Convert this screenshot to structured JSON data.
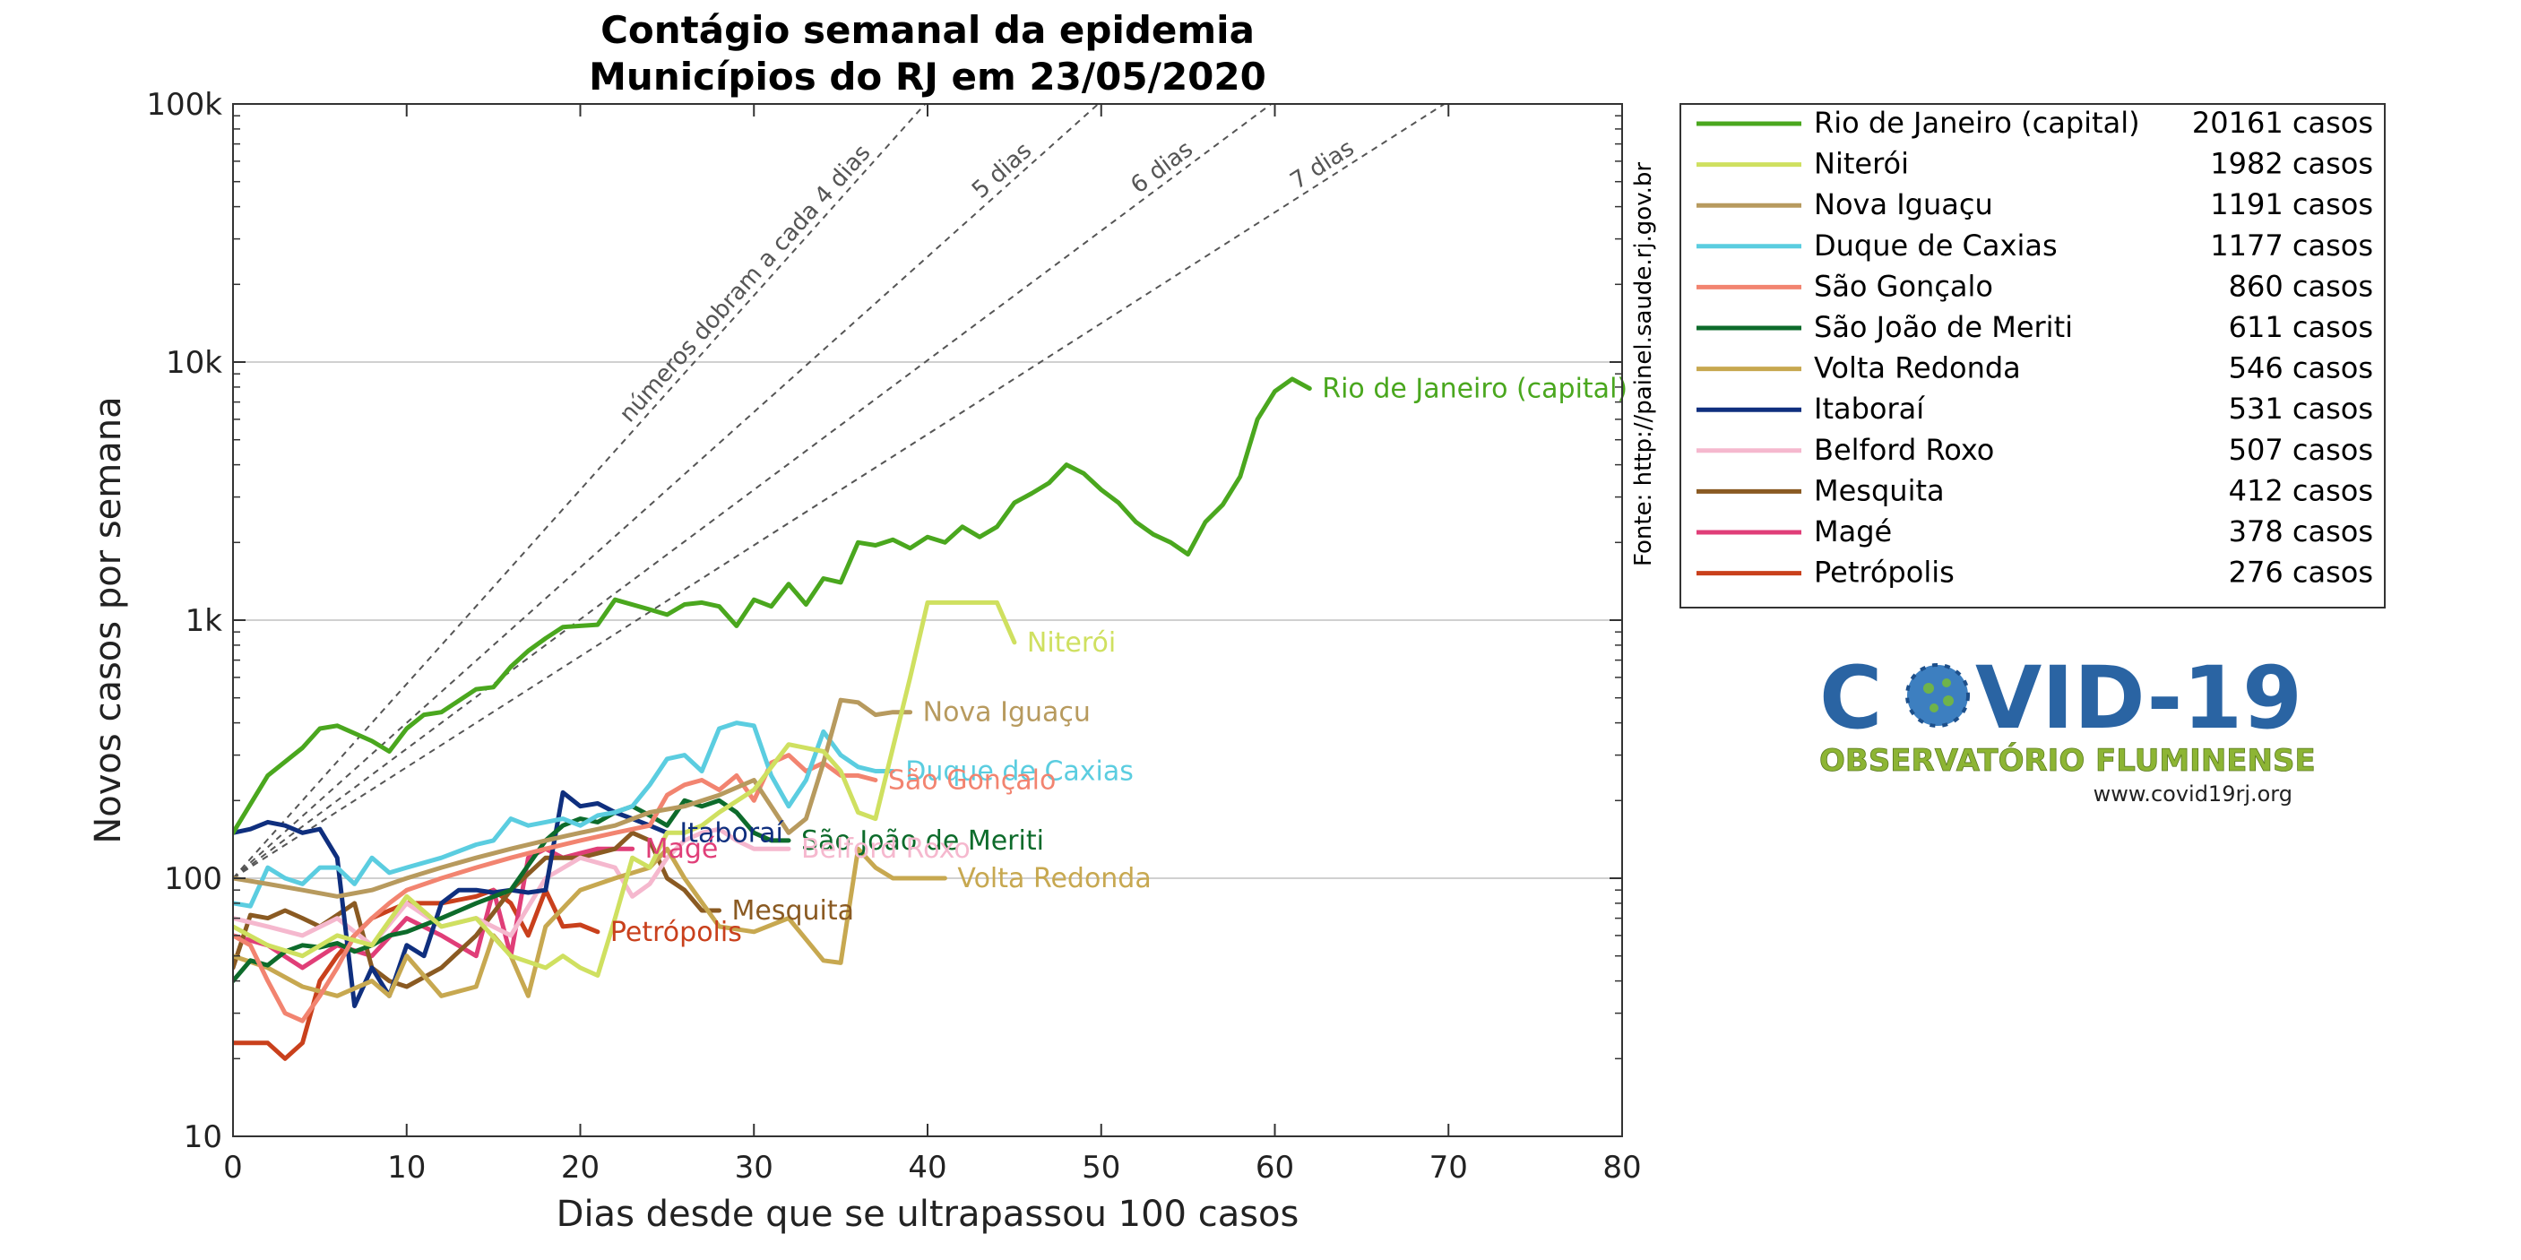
{
  "chart_data": {
    "type": "line",
    "title": "Contágio semanal da epidemia",
    "subtitle": "Municípios do RJ em 23/05/2020",
    "xlabel": "Dias desde que se ultrapassou 100 casos",
    "ylabel": "Novos casos por semana",
    "xlim": [
      0,
      80
    ],
    "ylim": [
      10,
      100000
    ],
    "yscale": "log",
    "grid": "horizontal",
    "x_ticks": [
      0,
      10,
      20,
      30,
      40,
      50,
      60,
      70,
      80
    ],
    "y_ticks": [
      10,
      100,
      1000,
      10000,
      100000
    ],
    "y_tick_labels": [
      "10",
      "100",
      "1k",
      "10k",
      "100k"
    ],
    "legend_position": "outside-right-top",
    "doubling_reference_lines": [
      {
        "days": 4,
        "label": "números dobram a cada 4 dias"
      },
      {
        "days": 5,
        "label": "5 dias"
      },
      {
        "days": 6,
        "label": "6 dias"
      },
      {
        "days": 7,
        "label": "7 dias"
      }
    ],
    "doubling_origin_value": 100,
    "source_note": "Fonte: http://painel.saude.rj.gov.br",
    "series": [
      {
        "name": "Rio de Janeiro (capital)",
        "total": "20161 casos",
        "color": "#4aa71e",
        "end_label": "Rio de Janeiro (capital)",
        "x": [
          0,
          2,
          4,
          5,
          6,
          8,
          9,
          10,
          11,
          12,
          14,
          15,
          16,
          17,
          18,
          19,
          20,
          21,
          22,
          24,
          25,
          26,
          27,
          28,
          29,
          30,
          31,
          32,
          33,
          34,
          35,
          36,
          37,
          38,
          39,
          40,
          41,
          42,
          43,
          44,
          45,
          46,
          47,
          48,
          49,
          50,
          51,
          52,
          53,
          54,
          55,
          56,
          57,
          58,
          59,
          60,
          61,
          62
        ],
        "y": [
          150,
          250,
          320,
          380,
          390,
          340,
          310,
          380,
          430,
          440,
          540,
          550,
          660,
          760,
          850,
          940,
          950,
          960,
          1200,
          1100,
          1050,
          1150,
          1170,
          1130,
          950,
          1200,
          1130,
          1380,
          1150,
          1450,
          1400,
          2000,
          1950,
          2050,
          1900,
          2100,
          2000,
          2300,
          2100,
          2300,
          2850,
          3100,
          3400,
          4000,
          3700,
          3200,
          2850,
          2400,
          2150,
          2000,
          1800,
          2400,
          2800,
          3600,
          6000,
          7700,
          8600,
          7900
        ]
      },
      {
        "name": "Niterói",
        "total": "1982 casos",
        "color": "#cfe060",
        "end_label": "Niterói",
        "x": [
          0,
          2,
          4,
          6,
          8,
          10,
          12,
          14,
          16,
          18,
          19,
          20,
          21,
          22,
          23,
          24,
          25,
          26,
          27,
          28,
          30,
          32,
          34,
          35,
          36,
          37,
          38,
          39,
          40,
          42,
          43,
          44,
          45
        ],
        "y": [
          65,
          55,
          50,
          60,
          55,
          85,
          65,
          70,
          50,
          45,
          50,
          45,
          42,
          70,
          120,
          110,
          150,
          150,
          160,
          180,
          220,
          330,
          310,
          260,
          180,
          170,
          320,
          600,
          1170,
          1170,
          1170,
          1170,
          820
        ]
      },
      {
        "name": "Nova Iguaçu",
        "total": "1191 casos",
        "color": "#b79a5e",
        "end_label": "Nova Iguaçu",
        "x": [
          0,
          2,
          4,
          6,
          8,
          10,
          12,
          14,
          16,
          18,
          20,
          22,
          24,
          26,
          28,
          30,
          32,
          33,
          34,
          35,
          36,
          37,
          38,
          39
        ],
        "y": [
          100,
          95,
          90,
          85,
          90,
          100,
          110,
          120,
          130,
          140,
          150,
          160,
          180,
          190,
          210,
          240,
          150,
          170,
          280,
          490,
          480,
          430,
          440,
          440
        ]
      },
      {
        "name": "Duque de Caxias",
        "total": "1177 casos",
        "color": "#5bcde0",
        "end_label": "Duque de Caxias",
        "x": [
          0,
          1,
          2,
          3,
          4,
          5,
          6,
          7,
          8,
          9,
          10,
          12,
          14,
          15,
          16,
          17,
          18,
          19,
          20,
          21,
          22,
          23,
          24,
          25,
          26,
          27,
          28,
          29,
          30,
          31,
          32,
          33,
          34,
          35,
          36,
          37,
          38
        ],
        "y": [
          80,
          78,
          110,
          100,
          95,
          110,
          110,
          95,
          120,
          105,
          110,
          120,
          135,
          140,
          170,
          160,
          165,
          170,
          160,
          175,
          180,
          190,
          230,
          290,
          300,
          260,
          380,
          400,
          390,
          250,
          190,
          240,
          370,
          300,
          270,
          260,
          260
        ]
      },
      {
        "name": "São Gonçalo",
        "total": "860 casos",
        "color": "#f28470",
        "end_label": "São Gonçalo",
        "x": [
          0,
          1,
          2,
          3,
          4,
          5,
          6,
          7,
          8,
          9,
          10,
          12,
          14,
          16,
          18,
          20,
          22,
          24,
          25,
          26,
          27,
          28,
          29,
          30,
          31,
          32,
          33,
          34,
          35,
          36,
          37
        ],
        "y": [
          60,
          55,
          40,
          30,
          28,
          35,
          45,
          60,
          70,
          80,
          90,
          100,
          110,
          120,
          130,
          140,
          150,
          160,
          210,
          230,
          240,
          220,
          250,
          200,
          280,
          300,
          260,
          280,
          250,
          250,
          240
        ]
      },
      {
        "name": "São João de Meriti",
        "total": "611 casos",
        "color": "#0d6b2b",
        "end_label": "São João de Meriti",
        "x": [
          0,
          1,
          2,
          3,
          4,
          5,
          6,
          7,
          8,
          9,
          10,
          12,
          14,
          16,
          18,
          19,
          20,
          21,
          22,
          23,
          24,
          25,
          26,
          27,
          28,
          29,
          30,
          31,
          32
        ],
        "y": [
          40,
          48,
          46,
          52,
          55,
          54,
          56,
          52,
          55,
          60,
          62,
          70,
          80,
          90,
          140,
          160,
          170,
          165,
          180,
          190,
          175,
          160,
          200,
          190,
          200,
          180,
          150,
          140,
          140
        ]
      },
      {
        "name": "Volta Redonda",
        "total": "546 casos",
        "color": "#c7a850",
        "end_label": "Volta Redonda",
        "x": [
          0,
          2,
          4,
          6,
          8,
          9,
          10,
          12,
          14,
          15,
          16,
          17,
          18,
          20,
          22,
          24,
          25,
          26,
          28,
          30,
          32,
          34,
          35,
          36,
          37,
          38,
          39,
          40,
          41
        ],
        "y": [
          50,
          45,
          38,
          35,
          40,
          35,
          50,
          35,
          38,
          60,
          50,
          35,
          65,
          90,
          100,
          110,
          130,
          100,
          65,
          62,
          70,
          48,
          47,
          130,
          110,
          100,
          100,
          100,
          100
        ]
      },
      {
        "name": "Itaboraí",
        "total": "531 casos",
        "color": "#0f2f7e",
        "end_label": "Itaboraí",
        "x": [
          0,
          1,
          2,
          3,
          4,
          5,
          6,
          7,
          8,
          9,
          10,
          11,
          12,
          13,
          14,
          15,
          16,
          17,
          18,
          19,
          20,
          21,
          22,
          23,
          24,
          25
        ],
        "y": [
          150,
          155,
          165,
          160,
          150,
          155,
          120,
          32,
          45,
          35,
          55,
          50,
          80,
          90,
          90,
          88,
          90,
          88,
          90,
          215,
          190,
          195,
          180,
          170,
          160,
          150
        ]
      },
      {
        "name": "Belford Roxo",
        "total": "507 casos",
        "color": "#f5b8ce",
        "end_label": "Belford Roxo",
        "x": [
          0,
          2,
          4,
          6,
          8,
          10,
          12,
          14,
          16,
          18,
          20,
          22,
          23,
          24,
          25,
          26,
          27,
          28,
          29,
          30,
          31,
          32
        ],
        "y": [
          70,
          65,
          60,
          70,
          55,
          80,
          65,
          70,
          60,
          100,
          120,
          110,
          85,
          95,
          120,
          140,
          150,
          155,
          140,
          130,
          130,
          130
        ]
      },
      {
        "name": "Mesquita",
        "total": "412 casos",
        "color": "#8a5a22",
        "end_label": "Mesquita",
        "x": [
          0,
          1,
          2,
          3,
          4,
          5,
          6,
          7,
          8,
          9,
          10,
          12,
          14,
          16,
          18,
          20,
          22,
          23,
          24,
          25,
          26,
          27,
          28
        ],
        "y": [
          45,
          72,
          70,
          75,
          70,
          65,
          72,
          80,
          45,
          40,
          38,
          45,
          60,
          90,
          120,
          120,
          130,
          150,
          140,
          100,
          90,
          75,
          75
        ]
      },
      {
        "name": "Magé",
        "total": "378 casos",
        "color": "#e03e78",
        "end_label": "Magé",
        "x": [
          0,
          2,
          4,
          6,
          8,
          10,
          12,
          14,
          15,
          16,
          17,
          18,
          19,
          20,
          21,
          22,
          23
        ],
        "y": [
          60,
          55,
          45,
          55,
          50,
          70,
          60,
          50,
          90,
          50,
          120,
          130,
          120,
          125,
          130,
          130,
          130
        ]
      },
      {
        "name": "Petrópolis",
        "total": "276 casos",
        "color": "#c9401c",
        "end_label": "Petrópolis",
        "x": [
          0,
          1,
          2,
          3,
          4,
          5,
          6,
          7,
          8,
          9,
          10,
          12,
          14,
          15,
          16,
          17,
          18,
          19,
          20,
          21
        ],
        "y": [
          23,
          23,
          23,
          20,
          23,
          40,
          50,
          60,
          70,
          75,
          80,
          80,
          85,
          90,
          80,
          60,
          90,
          65,
          66,
          62
        ]
      }
    ]
  }
}
